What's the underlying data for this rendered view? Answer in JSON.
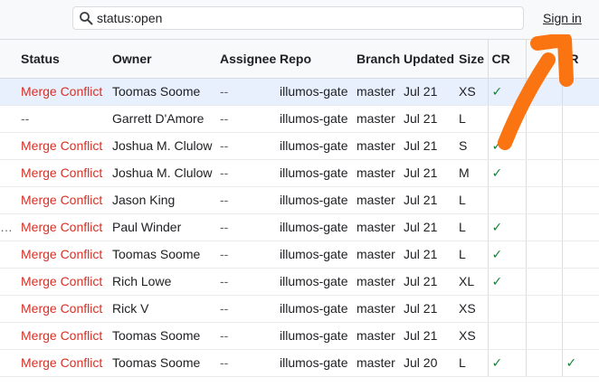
{
  "search": {
    "value": "status:open"
  },
  "header": {
    "signin_label": "Sign in"
  },
  "table": {
    "columns": [
      "Status",
      "Owner",
      "Assignee",
      "Repo",
      "Branch",
      "Updated",
      "Size",
      "CR",
      "",
      "IR"
    ],
    "rows": [
      {
        "lead": "",
        "status": "Merge Conflict",
        "owner": "Toomas Soome",
        "assignee": "--",
        "repo": "illumos-gate",
        "branch": "master",
        "updated": "Jul 21",
        "size": "XS",
        "cr": "✓",
        "x": "",
        "ir": "",
        "selected": true
      },
      {
        "lead": "",
        "status": "--",
        "owner": "Garrett D'Amore",
        "assignee": "--",
        "repo": "illumos-gate",
        "branch": "master",
        "updated": "Jul 21",
        "size": "L",
        "cr": "",
        "x": "",
        "ir": "",
        "selected": false
      },
      {
        "lead": "",
        "status": "Merge Conflict",
        "owner": "Joshua M. Clulow",
        "assignee": "--",
        "repo": "illumos-gate",
        "branch": "master",
        "updated": "Jul 21",
        "size": "S",
        "cr": "✓",
        "x": "",
        "ir": "",
        "selected": false
      },
      {
        "lead": "",
        "status": "Merge Conflict",
        "owner": "Joshua M. Clulow",
        "assignee": "--",
        "repo": "illumos-gate",
        "branch": "master",
        "updated": "Jul 21",
        "size": "M",
        "cr": "✓",
        "x": "",
        "ir": "",
        "selected": false
      },
      {
        "lead": "",
        "status": "Merge Conflict",
        "owner": "Jason King",
        "assignee": "--",
        "repo": "illumos-gate",
        "branch": "master",
        "updated": "Jul 21",
        "size": "L",
        "cr": "",
        "x": "",
        "ir": "",
        "selected": false
      },
      {
        "lead": "…",
        "status": "Merge Conflict",
        "owner": "Paul Winder",
        "assignee": "--",
        "repo": "illumos-gate",
        "branch": "master",
        "updated": "Jul 21",
        "size": "L",
        "cr": "✓",
        "x": "",
        "ir": "",
        "selected": false
      },
      {
        "lead": "",
        "status": "Merge Conflict",
        "owner": "Toomas Soome",
        "assignee": "--",
        "repo": "illumos-gate",
        "branch": "master",
        "updated": "Jul 21",
        "size": "L",
        "cr": "✓",
        "x": "",
        "ir": "",
        "selected": false
      },
      {
        "lead": "",
        "status": "Merge Conflict",
        "owner": "Rich Lowe",
        "assignee": "--",
        "repo": "illumos-gate",
        "branch": "master",
        "updated": "Jul 21",
        "size": "XL",
        "cr": "✓",
        "x": "",
        "ir": "",
        "selected": false
      },
      {
        "lead": "",
        "status": "Merge Conflict",
        "owner": "Rick V",
        "assignee": "--",
        "repo": "illumos-gate",
        "branch": "master",
        "updated": "Jul 21",
        "size": "XS",
        "cr": "",
        "x": "",
        "ir": "",
        "selected": false
      },
      {
        "lead": "",
        "status": "Merge Conflict",
        "owner": "Toomas Soome",
        "assignee": "--",
        "repo": "illumos-gate",
        "branch": "master",
        "updated": "Jul 21",
        "size": "XS",
        "cr": "",
        "x": "",
        "ir": "",
        "selected": false
      },
      {
        "lead": "",
        "status": "Merge Conflict",
        "owner": "Toomas Soome",
        "assignee": "--",
        "repo": "illumos-gate",
        "branch": "master",
        "updated": "Jul 20",
        "size": "L",
        "cr": "✓",
        "x": "",
        "ir": "✓",
        "selected": false
      }
    ]
  },
  "colors": {
    "conflict": "#d93025",
    "check": "#188038",
    "arrow": "#fb7412"
  }
}
